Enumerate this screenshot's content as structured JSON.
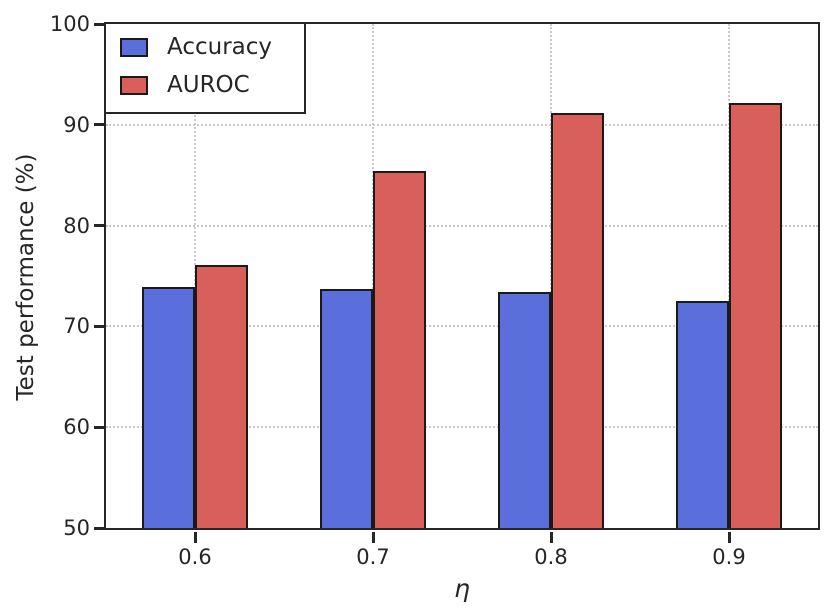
{
  "chart_data": {
    "type": "bar",
    "categories": [
      "0.6",
      "0.7",
      "0.8",
      "0.9"
    ],
    "series": [
      {
        "name": "Accuracy",
        "color": "#5a6fdc",
        "values": [
          73.9,
          73.7,
          73.4,
          72.5
        ]
      },
      {
        "name": "AUROC",
        "color": "#d95f5a",
        "values": [
          76.1,
          85.4,
          91.2,
          92.2
        ]
      }
    ],
    "xlabel": "η",
    "ylabel": "Test performance (%)",
    "ylim": [
      50,
      100
    ],
    "yticks": [
      50,
      60,
      70,
      80,
      90,
      100
    ],
    "bar_width_fraction": 0.3,
    "grid": "dotted, horizontal at yticks and vertical at category centers, drawn behind bars",
    "legend": {
      "position": "upper left",
      "entries": [
        "Accuracy",
        "AUROC"
      ]
    },
    "styling": {
      "bar_edge_color": "#1a1a1a",
      "grid_color": "#c9c9c9",
      "axis_color": "#262626",
      "text_color": "#262626",
      "background": "#ffffff"
    }
  }
}
